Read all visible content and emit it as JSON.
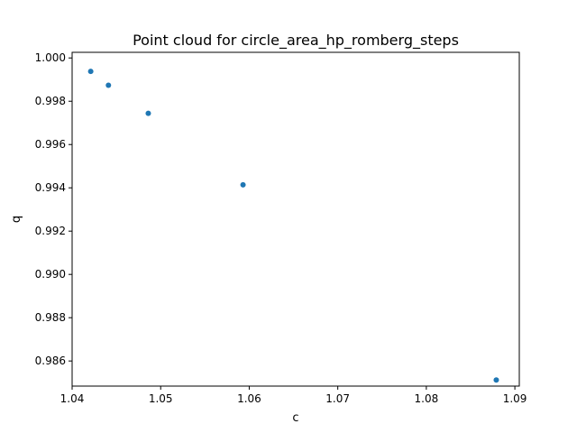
{
  "chart_data": {
    "type": "scatter",
    "title": "Point cloud for circle_area_hp_romberg_steps",
    "xlabel": "c",
    "ylabel": "q",
    "xlim": [
      1.04,
      1.0905
    ],
    "ylim": [
      0.98484,
      1.00026
    ],
    "x_ticks": [
      1.04,
      1.05,
      1.06,
      1.07,
      1.08,
      1.09
    ],
    "x_tick_labels": [
      "1.04",
      "1.05",
      "1.06",
      "1.07",
      "1.08",
      "1.09"
    ],
    "y_ticks": [
      0.986,
      0.988,
      0.99,
      0.992,
      0.994,
      0.996,
      0.998,
      1.0
    ],
    "y_tick_labels": [
      "0.986",
      "0.988",
      "0.990",
      "0.992",
      "0.994",
      "0.996",
      "0.998",
      "1.000"
    ],
    "grid": false,
    "point_color": "#1f77b4",
    "series": [
      {
        "x": [
          1.0421,
          1.0441,
          1.0486,
          1.0593,
          1.0879
        ],
        "y": [
          0.99938,
          0.99874,
          0.99744,
          0.99414,
          0.98512
        ]
      }
    ]
  }
}
